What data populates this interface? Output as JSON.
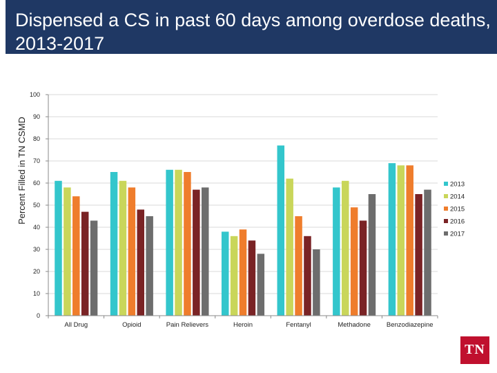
{
  "title": "Dispensed a CS in past 60 days among overdose deaths, 2013-2017",
  "logo_text": "TN",
  "colors": {
    "header_bg": "#1f3864",
    "series": [
      "#33c6cc",
      "#c9d65a",
      "#ef7d2c",
      "#7a2325",
      "#6d6d6d"
    ],
    "logo": "#c0102e"
  },
  "chart_data": {
    "type": "bar",
    "title": "",
    "xlabel": "",
    "ylabel": "Percent Filled in TN CSMD",
    "ylim": [
      0,
      100
    ],
    "yticks": [
      "0",
      "10",
      "20",
      "30",
      "40",
      "50",
      "60",
      "70",
      "80",
      "90",
      "100"
    ],
    "grid": true,
    "legend_position": "right",
    "categories": [
      "All Drug",
      "Opioid",
      "Pain Relievers",
      "Heroin",
      "Fentanyl",
      "Methadone",
      "Benzodiazepine"
    ],
    "series": [
      {
        "name": "2013",
        "values": [
          61,
          65,
          66,
          38,
          77,
          58,
          69
        ]
      },
      {
        "name": "2014",
        "values": [
          58,
          61,
          66,
          36,
          62,
          61,
          68
        ]
      },
      {
        "name": "2015",
        "values": [
          54,
          58,
          65,
          39,
          45,
          49,
          68
        ]
      },
      {
        "name": "2016",
        "values": [
          47,
          48,
          57,
          34,
          36,
          43,
          55
        ]
      },
      {
        "name": "2017",
        "values": [
          43,
          45,
          58,
          28,
          30,
          55,
          57
        ]
      }
    ]
  }
}
